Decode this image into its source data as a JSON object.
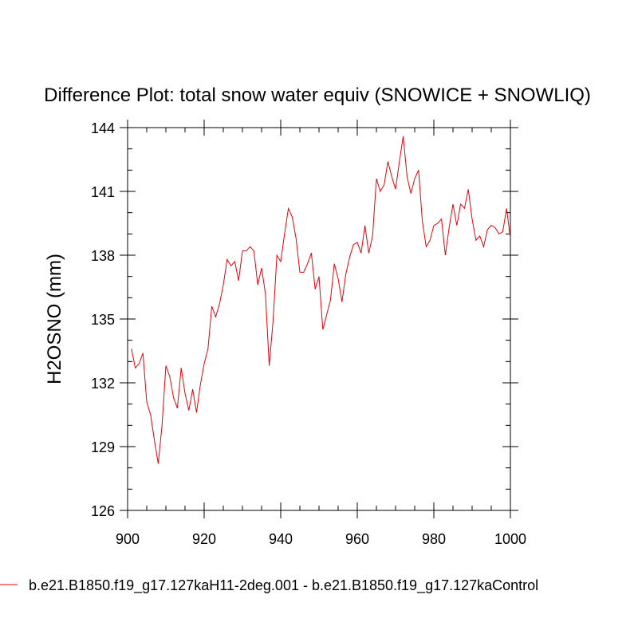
{
  "chart_data": {
    "type": "line",
    "title": "Difference Plot: total snow water equiv (SNOWICE + SNOWLIQ)",
    "xlabel": "",
    "ylabel": "H2OSNO  (mm)",
    "xlim": [
      900,
      1000
    ],
    "ylim": [
      126,
      144
    ],
    "xticks": [
      900,
      920,
      940,
      960,
      980,
      1000
    ],
    "yticks": [
      126,
      129,
      132,
      135,
      138,
      141,
      144
    ],
    "x_minor_step": 5,
    "y_minor_step": 1,
    "grid": false,
    "legend_position": "bottom",
    "series": [
      {
        "name": "b.e21.B1850.f19_g17.127kaH11-2deg.001 - b.e21.B1850.f19_g17.127kaControl",
        "color": "#e8000b",
        "x": [
          901,
          902,
          903,
          904,
          905,
          906,
          907,
          908,
          909,
          910,
          911,
          912,
          913,
          914,
          915,
          916,
          917,
          918,
          919,
          920,
          921,
          922,
          923,
          924,
          925,
          926,
          927,
          928,
          929,
          930,
          931,
          932,
          933,
          934,
          935,
          936,
          937,
          938,
          939,
          940,
          941,
          942,
          943,
          944,
          945,
          946,
          947,
          948,
          949,
          950,
          951,
          952,
          953,
          954,
          955,
          956,
          957,
          958,
          959,
          960,
          961,
          962,
          963,
          964,
          965,
          966,
          967,
          968,
          969,
          970,
          971,
          972,
          973,
          974,
          975,
          976,
          977,
          978,
          979,
          980,
          981,
          982,
          983,
          984,
          985,
          986,
          987,
          988,
          989,
          990,
          991,
          992,
          993,
          994,
          995,
          996,
          997,
          998,
          999,
          1000
        ],
        "values": [
          133.6,
          132.7,
          132.9,
          133.4,
          131.1,
          130.5,
          129.3,
          128.2,
          130.0,
          132.8,
          132.3,
          131.3,
          130.8,
          132.7,
          131.5,
          130.7,
          131.7,
          130.6,
          131.9,
          132.9,
          133.6,
          135.6,
          135.1,
          135.7,
          136.6,
          137.8,
          137.5,
          137.7,
          136.8,
          138.2,
          138.2,
          138.4,
          138.2,
          136.6,
          137.4,
          136.2,
          132.8,
          134.9,
          138.0,
          137.7,
          139.0,
          140.2,
          139.8,
          138.8,
          137.2,
          137.2,
          137.6,
          138.1,
          136.4,
          137.0,
          134.5,
          135.2,
          135.9,
          137.6,
          136.9,
          135.8,
          137.1,
          137.9,
          138.5,
          138.6,
          138.1,
          139.4,
          138.1,
          138.9,
          141.6,
          141.0,
          141.3,
          142.4,
          141.7,
          141.1,
          142.4,
          143.6,
          141.7,
          140.9,
          141.6,
          142.0,
          139.6,
          138.4,
          138.7,
          139.4,
          139.5,
          139.7,
          138.0,
          139.3,
          140.4,
          139.4,
          140.4,
          140.2,
          141.1,
          139.7,
          138.7,
          138.9,
          138.4,
          139.2,
          139.4,
          139.3,
          139.0,
          139.1,
          140.2,
          138.8
        ]
      }
    ]
  }
}
